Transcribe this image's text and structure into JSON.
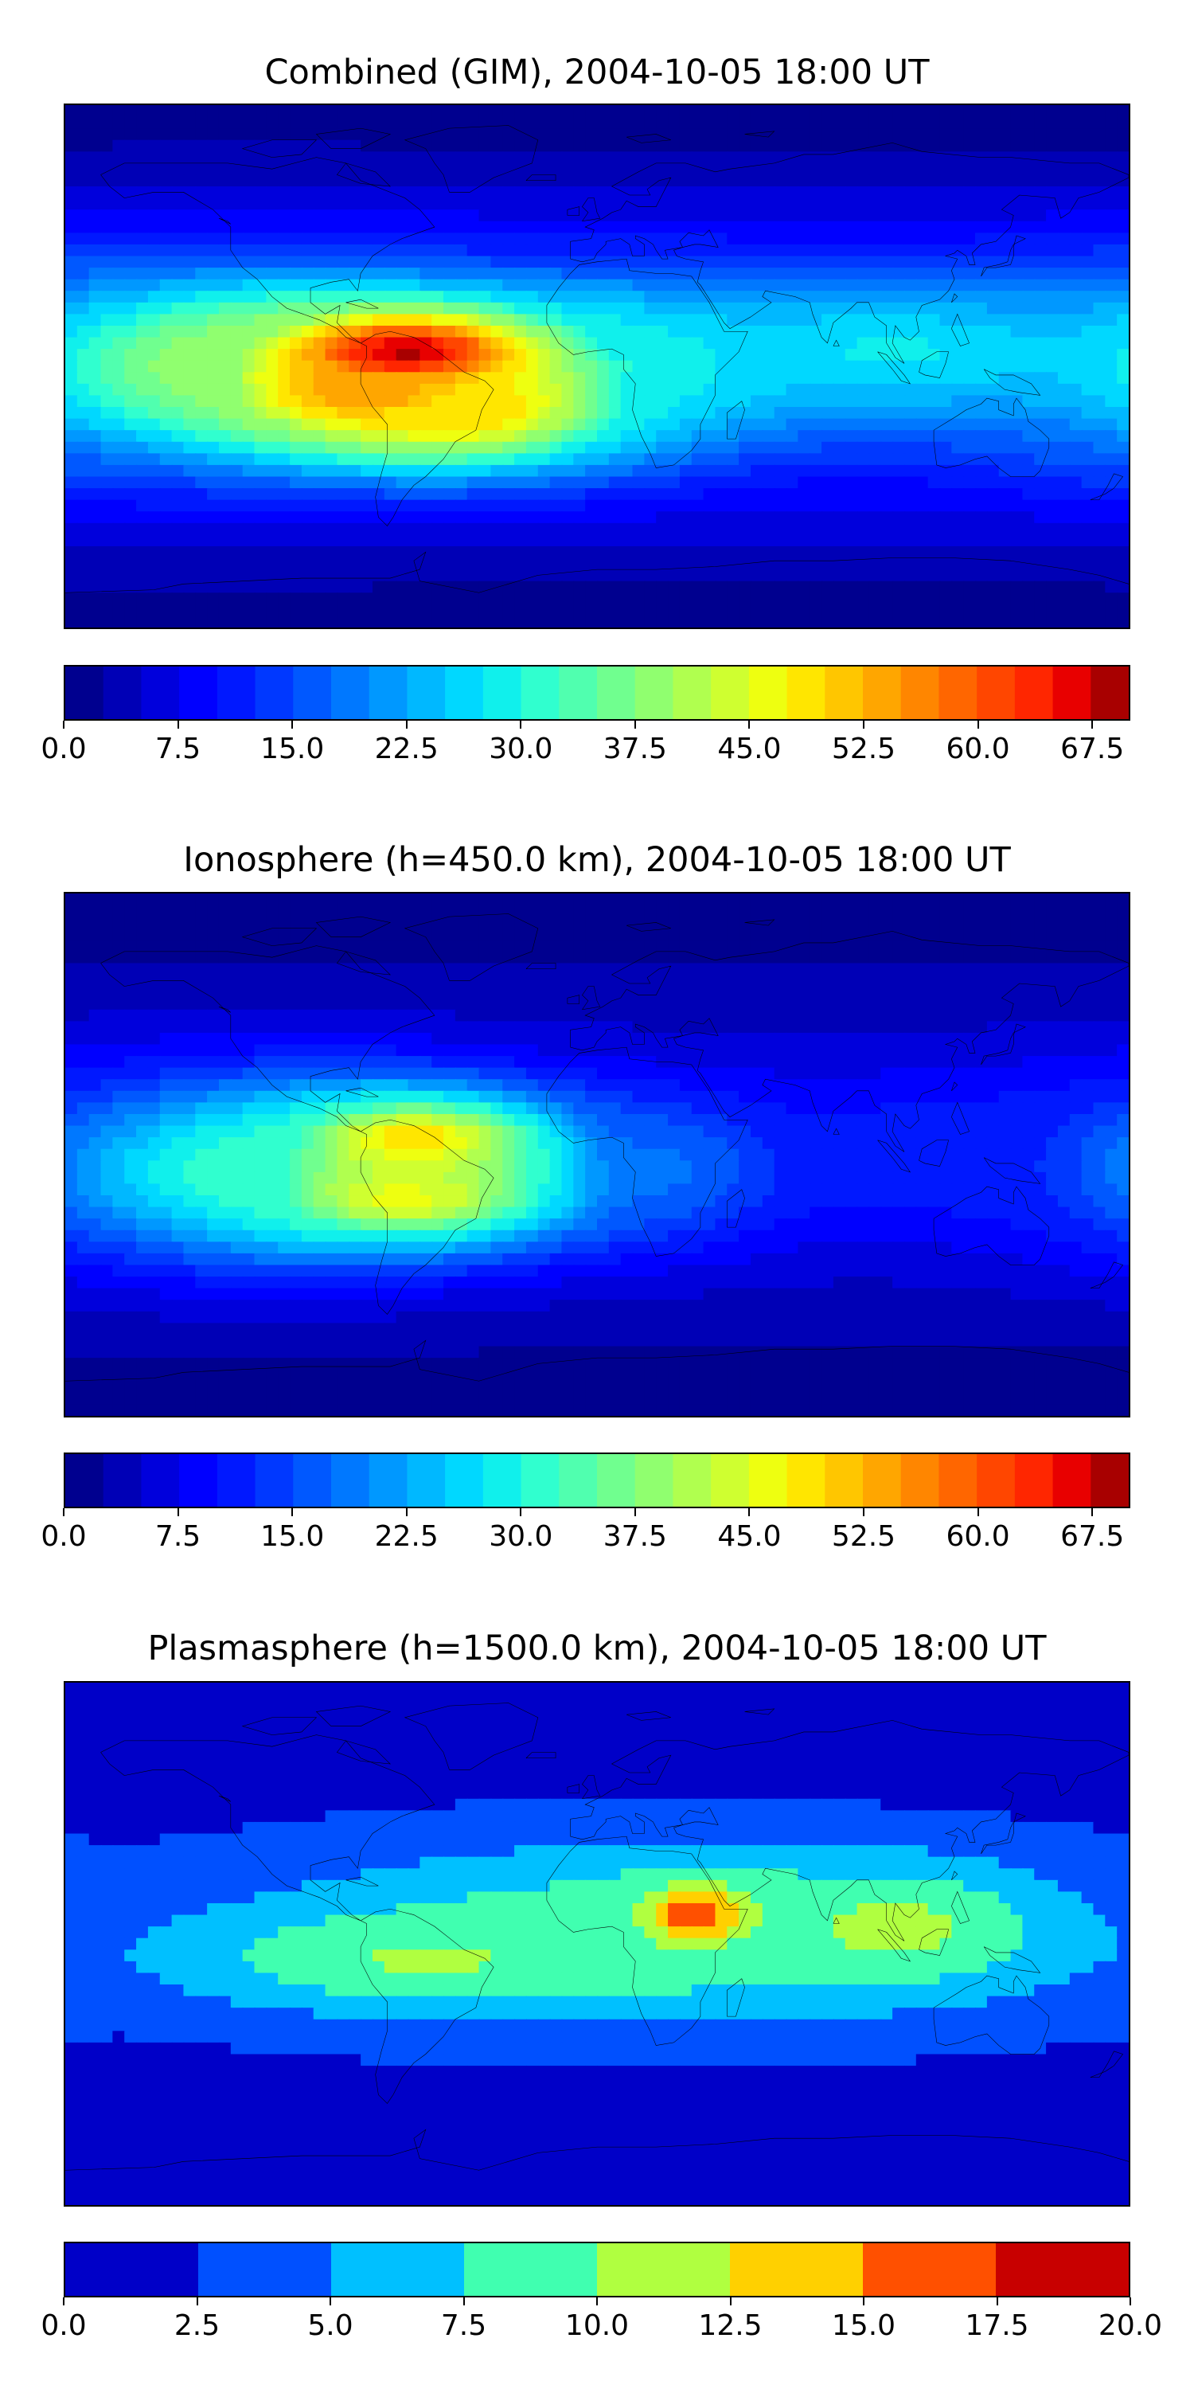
{
  "panels": [
    {
      "title": "Combined (GIM), 2004-10-05 18:00 UT",
      "colorbar": {
        "min": 0.0,
        "max": 70.0,
        "levels": 28,
        "ticks": [
          "0.0",
          "7.5",
          "15.0",
          "22.5",
          "30.0",
          "37.5",
          "45.0",
          "52.5",
          "60.0",
          "67.5"
        ],
        "colors": [
          "#00008f",
          "#0000b6",
          "#0000dc",
          "#0000ff",
          "#0018ff",
          "#0038ff",
          "#0058ff",
          "#0078ff",
          "#0098ff",
          "#00b8ff",
          "#00d8ff",
          "#10f0ec",
          "#30ffcf",
          "#50ffaf",
          "#70ff8f",
          "#90ff6f",
          "#b0ff4f",
          "#cfff30",
          "#eeff10",
          "#ffe600",
          "#ffc600",
          "#ffa600",
          "#ff8600",
          "#ff6600",
          "#ff4600",
          "#ff2600",
          "#e80000",
          "#a80000"
        ]
      },
      "field_features": [
        {
          "lon": -65,
          "lat": 5,
          "value": 68,
          "sx": 40,
          "sy": 12
        },
        {
          "lon": -80,
          "lat": -10,
          "value": 55,
          "sx": 35,
          "sy": 12
        },
        {
          "lon": -45,
          "lat": -15,
          "value": 50,
          "sx": 40,
          "sy": 14
        },
        {
          "lon": -120,
          "lat": 0,
          "value": 40,
          "sx": 60,
          "sy": 22
        },
        {
          "lon": 10,
          "lat": 0,
          "value": 30,
          "sx": 45,
          "sy": 20
        },
        {
          "lon": 100,
          "lat": 5,
          "value": 28,
          "sx": 60,
          "sy": 18
        },
        {
          "lon": 170,
          "lat": -5,
          "value": 18,
          "sx": 40,
          "sy": 20
        }
      ],
      "field_base": 10
    },
    {
      "title": "Ionosphere  (h=450.0 km), 2004-10-05 18:00 UT",
      "colorbar": {
        "min": 0.0,
        "max": 70.0,
        "levels": 28,
        "ticks": [
          "0.0",
          "7.5",
          "15.0",
          "22.5",
          "30.0",
          "37.5",
          "45.0",
          "52.5",
          "60.0",
          "67.5"
        ],
        "colors": [
          "#00008f",
          "#0000b6",
          "#0000dc",
          "#0000ff",
          "#0018ff",
          "#0038ff",
          "#0058ff",
          "#0078ff",
          "#0098ff",
          "#00b8ff",
          "#00d8ff",
          "#10f0ec",
          "#30ffcf",
          "#50ffaf",
          "#70ff8f",
          "#90ff6f",
          "#b0ff4f",
          "#cfff30",
          "#eeff10",
          "#ffe600",
          "#ffc600",
          "#ffa600",
          "#ff8600",
          "#ff6600",
          "#ff4600",
          "#ff2600",
          "#e80000",
          "#a80000"
        ]
      },
      "field_features": [
        {
          "lon": -62,
          "lat": 5,
          "value": 50,
          "sx": 35,
          "sy": 12
        },
        {
          "lon": -65,
          "lat": -15,
          "value": 46,
          "sx": 40,
          "sy": 12
        },
        {
          "lon": -110,
          "lat": -5,
          "value": 32,
          "sx": 60,
          "sy": 22
        },
        {
          "lon": 20,
          "lat": -5,
          "value": 18,
          "sx": 35,
          "sy": 18
        },
        {
          "lon": 120,
          "lat": 0,
          "value": 12,
          "sx": 50,
          "sy": 18
        }
      ],
      "field_base": 6
    },
    {
      "title": "Plasmasphere (h=1500.0 km), 2004-10-05 18:00 UT",
      "colorbar": {
        "min": 0.0,
        "max": 20.0,
        "levels": 8,
        "ticks": [
          "0.0",
          "2.5",
          "5.0",
          "7.5",
          "10.0",
          "12.5",
          "15.0",
          "17.5",
          "20.0"
        ],
        "colors": [
          "#0000c8",
          "#0050ff",
          "#00c0ff",
          "#40ffb0",
          "#b0ff40",
          "#ffd000",
          "#ff5000",
          "#c80000"
        ]
      },
      "field_features": [
        {
          "lon": 33,
          "lat": 10,
          "value": 16.5,
          "sx": 18,
          "sy": 10
        },
        {
          "lon": 100,
          "lat": 5,
          "value": 11.5,
          "sx": 35,
          "sy": 14
        },
        {
          "lon": -55,
          "lat": -5,
          "value": 10.5,
          "sx": 60,
          "sy": 12
        },
        {
          "lon": 20,
          "lat": 5,
          "value": 9,
          "sx": 90,
          "sy": 22
        }
      ],
      "field_base": 2.5
    }
  ]
}
